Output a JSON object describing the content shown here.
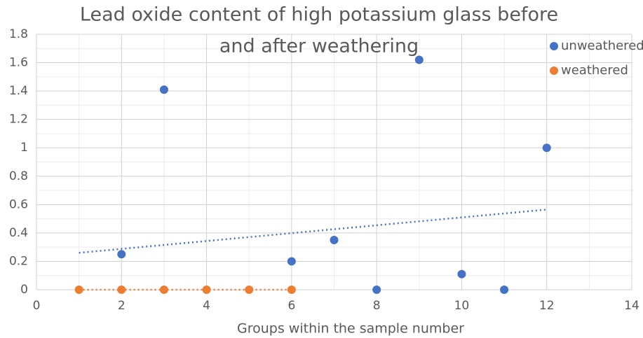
{
  "chart_data": {
    "type": "scatter",
    "title": [
      "Lead oxide content of high potassium glass before",
      "and after weathering"
    ],
    "x_label": "Groups within the sample number",
    "series": [
      {
        "name": "unweathered",
        "color": "#4472c4",
        "x": [
          2,
          3,
          6,
          7,
          8,
          9,
          10,
          11,
          12
        ],
        "values": [
          0.25,
          1.41,
          0.2,
          0.35,
          0,
          1.62,
          0.11,
          0,
          1.0
        ],
        "trendline": {
          "x": [
            1,
            12
          ],
          "values": [
            0.26,
            0.565
          ]
        }
      },
      {
        "name": "weathered",
        "color": "#ed7d31",
        "x": [
          1,
          2,
          3,
          4,
          5,
          6
        ],
        "values": [
          0,
          0,
          0,
          0,
          0,
          0
        ],
        "trendline": {
          "x": [
            1,
            6
          ],
          "values": [
            0,
            0
          ]
        }
      }
    ],
    "xlim": [
      0,
      14
    ],
    "xticks": [
      0,
      2,
      4,
      6,
      8,
      10,
      12,
      14
    ],
    "ylim": [
      0,
      1.8
    ],
    "yticks": [
      0,
      {
        "value": 0.2,
        "label": "0.2"
      },
      {
        "value": 0.4,
        "label": "0.4"
      },
      {
        "value": 0.6,
        "label": "0.6"
      },
      {
        "value": 0.8,
        "label": "0.8"
      },
      1,
      {
        "value": 1.2,
        "label": "1.2"
      },
      {
        "value": 1.4,
        "label": "1.4"
      },
      {
        "value": 1.6,
        "label": "1.6"
      },
      {
        "value": 1.8,
        "label": "1.8"
      }
    ],
    "grid": true,
    "minor_grid": true,
    "legend": "top-right"
  }
}
